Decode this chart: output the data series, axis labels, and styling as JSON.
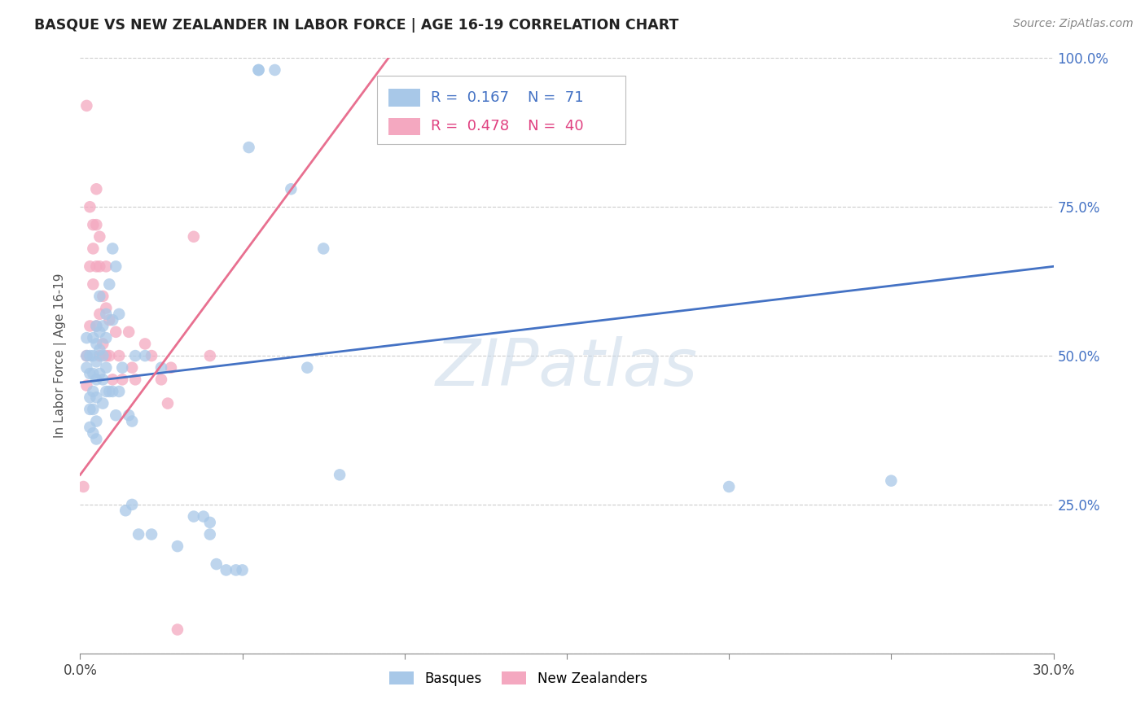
{
  "title": "BASQUE VS NEW ZEALANDER IN LABOR FORCE | AGE 16-19 CORRELATION CHART",
  "source": "Source: ZipAtlas.com",
  "ylabel": "In Labor Force | Age 16-19",
  "xlim": [
    0.0,
    0.3
  ],
  "ylim": [
    0.0,
    1.0
  ],
  "legend_blue_r": "0.167",
  "legend_blue_n": "71",
  "legend_pink_r": "0.478",
  "legend_pink_n": "40",
  "blue_color": "#a8c8e8",
  "pink_color": "#f4a8c0",
  "blue_line_color": "#4472c4",
  "pink_line_color": "#e87090",
  "watermark": "ZIPatlas",
  "blue_scatter_x": [
    0.002,
    0.002,
    0.002,
    0.003,
    0.003,
    0.003,
    0.003,
    0.003,
    0.004,
    0.004,
    0.004,
    0.004,
    0.004,
    0.004,
    0.005,
    0.005,
    0.005,
    0.005,
    0.005,
    0.005,
    0.005,
    0.006,
    0.006,
    0.006,
    0.006,
    0.007,
    0.007,
    0.007,
    0.007,
    0.008,
    0.008,
    0.008,
    0.008,
    0.009,
    0.009,
    0.01,
    0.01,
    0.01,
    0.011,
    0.011,
    0.012,
    0.012,
    0.013,
    0.014,
    0.015,
    0.016,
    0.016,
    0.017,
    0.018,
    0.02,
    0.022,
    0.025,
    0.03,
    0.035,
    0.038,
    0.04,
    0.04,
    0.042,
    0.045,
    0.048,
    0.05,
    0.052,
    0.055,
    0.055,
    0.06,
    0.065,
    0.07,
    0.075,
    0.08,
    0.2,
    0.25
  ],
  "blue_scatter_y": [
    0.48,
    0.5,
    0.53,
    0.47,
    0.5,
    0.43,
    0.41,
    0.38,
    0.53,
    0.5,
    0.47,
    0.44,
    0.41,
    0.37,
    0.55,
    0.52,
    0.49,
    0.46,
    0.43,
    0.39,
    0.36,
    0.54,
    0.51,
    0.47,
    0.6,
    0.55,
    0.5,
    0.46,
    0.42,
    0.57,
    0.53,
    0.48,
    0.44,
    0.62,
    0.44,
    0.68,
    0.56,
    0.44,
    0.65,
    0.4,
    0.57,
    0.44,
    0.48,
    0.24,
    0.4,
    0.25,
    0.39,
    0.5,
    0.2,
    0.5,
    0.2,
    0.48,
    0.18,
    0.23,
    0.23,
    0.2,
    0.22,
    0.15,
    0.14,
    0.14,
    0.14,
    0.85,
    0.98,
    0.98,
    0.98,
    0.78,
    0.48,
    0.68,
    0.3,
    0.28,
    0.29
  ],
  "pink_scatter_x": [
    0.001,
    0.002,
    0.002,
    0.002,
    0.003,
    0.003,
    0.003,
    0.004,
    0.004,
    0.004,
    0.005,
    0.005,
    0.005,
    0.005,
    0.006,
    0.006,
    0.006,
    0.006,
    0.007,
    0.007,
    0.008,
    0.008,
    0.008,
    0.009,
    0.009,
    0.01,
    0.011,
    0.012,
    0.013,
    0.015,
    0.016,
    0.017,
    0.02,
    0.022,
    0.025,
    0.027,
    0.028,
    0.03,
    0.035,
    0.04
  ],
  "pink_scatter_y": [
    0.28,
    0.92,
    0.5,
    0.45,
    0.75,
    0.65,
    0.55,
    0.72,
    0.68,
    0.62,
    0.78,
    0.72,
    0.65,
    0.55,
    0.7,
    0.65,
    0.57,
    0.5,
    0.6,
    0.52,
    0.65,
    0.58,
    0.5,
    0.56,
    0.5,
    0.46,
    0.54,
    0.5,
    0.46,
    0.54,
    0.48,
    0.46,
    0.52,
    0.5,
    0.46,
    0.42,
    0.48,
    0.04,
    0.7,
    0.5
  ],
  "blue_line_x": [
    0.0,
    0.3
  ],
  "blue_line_y": [
    0.455,
    0.65
  ],
  "pink_line_x": [
    0.0,
    0.095
  ],
  "pink_line_y": [
    0.3,
    1.0
  ]
}
